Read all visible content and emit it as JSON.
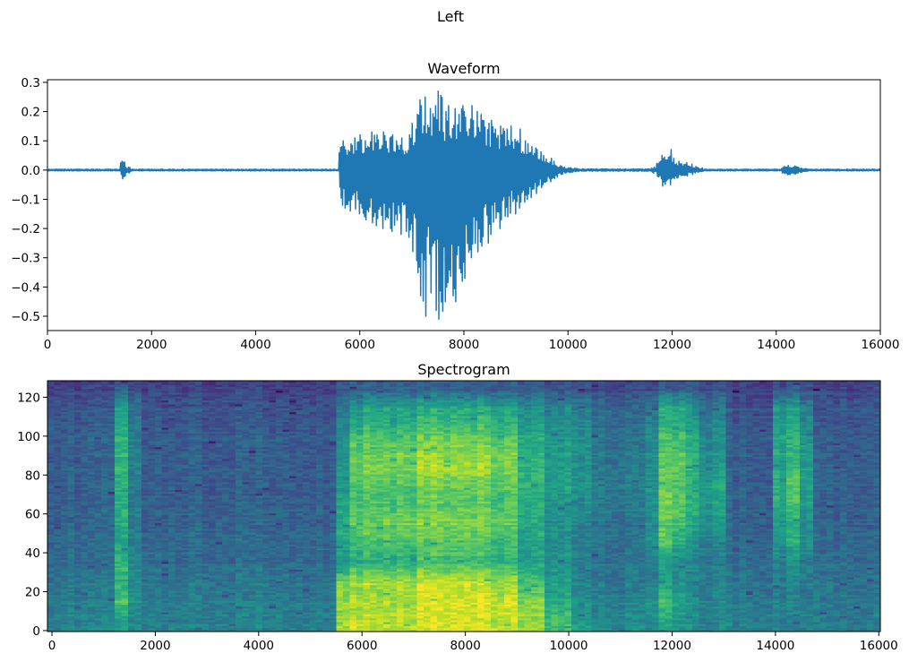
{
  "figure": {
    "suptitle": "Left"
  },
  "chart_data": [
    {
      "type": "line",
      "title": "Waveform",
      "xlabel": "",
      "ylabel": "",
      "xlim": [
        0,
        16000
      ],
      "ylim": [
        -0.549,
        0.309
      ],
      "grid": false,
      "color": "#1f77b4",
      "xticks": [
        0,
        2000,
        4000,
        6000,
        8000,
        10000,
        12000,
        14000,
        16000
      ],
      "xtick_labels": [
        "0",
        "2000",
        "4000",
        "6000",
        "8000",
        "10000",
        "12000",
        "14000",
        "16000"
      ],
      "yticks": [
        0.3,
        0.2,
        0.1,
        0.0,
        -0.1,
        -0.2,
        -0.3,
        -0.4,
        -0.5
      ],
      "ytick_labels": [
        "0.3",
        "0.2",
        "0.1",
        "0.0",
        "−0.1",
        "−0.2",
        "−0.3",
        "−0.4",
        "−0.5"
      ],
      "envelope_bin_samples": 100,
      "envelope_max": [
        0.003,
        0.003,
        0.003,
        0.003,
        0.003,
        0.003,
        0.003,
        0.003,
        0.003,
        0.003,
        0.003,
        0.003,
        0.003,
        0.003,
        0.03,
        0.01,
        0.003,
        0.003,
        0.003,
        0.003,
        0.003,
        0.003,
        0.003,
        0.003,
        0.003,
        0.003,
        0.003,
        0.003,
        0.003,
        0.003,
        0.003,
        0.003,
        0.003,
        0.003,
        0.003,
        0.003,
        0.003,
        0.003,
        0.003,
        0.003,
        0.003,
        0.003,
        0.003,
        0.003,
        0.003,
        0.003,
        0.003,
        0.003,
        0.003,
        0.003,
        0.003,
        0.003,
        0.003,
        0.003,
        0.003,
        0.003,
        0.1,
        0.08,
        0.09,
        0.11,
        0.12,
        0.1,
        0.13,
        0.12,
        0.13,
        0.11,
        0.12,
        0.1,
        0.11,
        0.12,
        0.16,
        0.24,
        0.25,
        0.21,
        0.22,
        0.27,
        0.2,
        0.22,
        0.21,
        0.22,
        0.2,
        0.22,
        0.2,
        0.19,
        0.16,
        0.17,
        0.14,
        0.15,
        0.14,
        0.15,
        0.14,
        0.1,
        0.09,
        0.08,
        0.07,
        0.05,
        0.04,
        0.03,
        0.015,
        0.01,
        0.008,
        0.006,
        0.004,
        0.004,
        0.004,
        0.004,
        0.004,
        0.004,
        0.004,
        0.004,
        0.004,
        0.004,
        0.004,
        0.004,
        0.004,
        0.004,
        0.01,
        0.03,
        0.05,
        0.07,
        0.04,
        0.03,
        0.025,
        0.02,
        0.012,
        0.008,
        0.003,
        0.003,
        0.003,
        0.003,
        0.003,
        0.003,
        0.003,
        0.003,
        0.003,
        0.003,
        0.003,
        0.003,
        0.003,
        0.003,
        0.003,
        0.012,
        0.016,
        0.014,
        0.01,
        0.005,
        0.003,
        0.003,
        0.003,
        0.003,
        0.003,
        0.003,
        0.003,
        0.003,
        0.003,
        0.003,
        0.003,
        0.003,
        0.003,
        0.003
      ],
      "envelope_min": [
        -0.003,
        -0.003,
        -0.003,
        -0.003,
        -0.003,
        -0.003,
        -0.003,
        -0.003,
        -0.003,
        -0.003,
        -0.003,
        -0.003,
        -0.003,
        -0.003,
        -0.03,
        -0.01,
        -0.003,
        -0.003,
        -0.003,
        -0.003,
        -0.003,
        -0.003,
        -0.003,
        -0.003,
        -0.003,
        -0.003,
        -0.003,
        -0.003,
        -0.003,
        -0.003,
        -0.003,
        -0.003,
        -0.003,
        -0.003,
        -0.003,
        -0.003,
        -0.003,
        -0.003,
        -0.003,
        -0.003,
        -0.003,
        -0.003,
        -0.003,
        -0.003,
        -0.003,
        -0.003,
        -0.003,
        -0.003,
        -0.003,
        -0.003,
        -0.003,
        -0.003,
        -0.003,
        -0.003,
        -0.003,
        -0.003,
        -0.12,
        -0.13,
        -0.14,
        -0.15,
        -0.16,
        -0.17,
        -0.18,
        -0.19,
        -0.2,
        -0.2,
        -0.21,
        -0.22,
        -0.21,
        -0.23,
        -0.31,
        -0.43,
        -0.5,
        -0.42,
        -0.48,
        -0.51,
        -0.45,
        -0.43,
        -0.45,
        -0.38,
        -0.37,
        -0.3,
        -0.28,
        -0.26,
        -0.25,
        -0.22,
        -0.2,
        -0.17,
        -0.16,
        -0.15,
        -0.13,
        -0.11,
        -0.1,
        -0.08,
        -0.06,
        -0.05,
        -0.04,
        -0.03,
        -0.015,
        -0.01,
        -0.008,
        -0.006,
        -0.004,
        -0.004,
        -0.004,
        -0.004,
        -0.004,
        -0.004,
        -0.004,
        -0.004,
        -0.004,
        -0.004,
        -0.004,
        -0.004,
        -0.004,
        -0.004,
        -0.01,
        -0.03,
        -0.055,
        -0.05,
        -0.03,
        -0.025,
        -0.02,
        -0.015,
        -0.01,
        -0.006,
        -0.003,
        -0.003,
        -0.003,
        -0.003,
        -0.003,
        -0.003,
        -0.003,
        -0.003,
        -0.003,
        -0.003,
        -0.003,
        -0.003,
        -0.003,
        -0.003,
        -0.003,
        -0.012,
        -0.016,
        -0.014,
        -0.01,
        -0.005,
        -0.003,
        -0.003,
        -0.003,
        -0.003,
        -0.003,
        -0.003,
        -0.003,
        -0.003,
        -0.003,
        -0.003,
        -0.003,
        -0.003,
        -0.003,
        -0.003
      ]
    },
    {
      "type": "heatmap",
      "title": "Spectrogram",
      "xlabel": "",
      "ylabel": "",
      "colormap": "viridis",
      "xlim": [
        -87,
        16030
      ],
      "ylim": [
        -0.5,
        128.5
      ],
      "time_frames": 124,
      "freq_bins": 129,
      "xticks": [
        0,
        2000,
        4000,
        6000,
        8000,
        10000,
        12000,
        14000,
        16000
      ],
      "xtick_labels": [
        "0",
        "2000",
        "4000",
        "6000",
        "8000",
        "10000",
        "12000",
        "14000",
        "16000"
      ],
      "yticks": [
        0,
        20,
        40,
        60,
        80,
        100,
        120
      ],
      "ytick_labels": [
        "0",
        "20",
        "40",
        "60",
        "80",
        "100",
        "120"
      ],
      "band_edges": [
        0,
        10,
        20,
        30,
        40,
        50,
        60,
        70,
        80,
        90,
        100,
        110,
        120,
        129
      ],
      "segments": [
        {
          "from": -87,
          "to": 1250,
          "level": [
            0.45,
            0.42,
            0.4,
            0.36,
            0.33,
            0.32,
            0.31,
            0.3,
            0.3,
            0.3,
            0.29,
            0.26,
            0.2
          ]
        },
        {
          "from": 1250,
          "to": 1500,
          "level": [
            0.55,
            0.72,
            0.62,
            0.65,
            0.55,
            0.6,
            0.62,
            0.6,
            0.66,
            0.64,
            0.6,
            0.55,
            0.3
          ]
        },
        {
          "from": 1500,
          "to": 1750,
          "level": [
            0.45,
            0.5,
            0.45,
            0.45,
            0.4,
            0.4,
            0.4,
            0.4,
            0.42,
            0.42,
            0.4,
            0.35,
            0.22
          ]
        },
        {
          "from": 1750,
          "to": 5500,
          "level": [
            0.45,
            0.42,
            0.4,
            0.36,
            0.33,
            0.32,
            0.31,
            0.3,
            0.3,
            0.3,
            0.29,
            0.26,
            0.2
          ]
        },
        {
          "from": 5500,
          "to": 5750,
          "level": [
            0.85,
            0.82,
            0.8,
            0.5,
            0.55,
            0.6,
            0.55,
            0.5,
            0.5,
            0.48,
            0.45,
            0.38,
            0.25
          ]
        },
        {
          "from": 5750,
          "to": 6000,
          "level": [
            0.9,
            0.85,
            0.85,
            0.6,
            0.65,
            0.75,
            0.7,
            0.68,
            0.75,
            0.72,
            0.6,
            0.5,
            0.28
          ]
        },
        {
          "from": 6000,
          "to": 7000,
          "level": [
            0.9,
            0.86,
            0.86,
            0.62,
            0.68,
            0.78,
            0.7,
            0.72,
            0.8,
            0.76,
            0.65,
            0.55,
            0.3
          ]
        },
        {
          "from": 7000,
          "to": 8500,
          "level": [
            0.95,
            0.95,
            0.92,
            0.7,
            0.72,
            0.82,
            0.75,
            0.78,
            0.88,
            0.82,
            0.7,
            0.6,
            0.32
          ]
        },
        {
          "from": 8500,
          "to": 9000,
          "level": [
            0.92,
            0.92,
            0.85,
            0.65,
            0.65,
            0.75,
            0.7,
            0.72,
            0.8,
            0.75,
            0.65,
            0.55,
            0.3
          ]
        },
        {
          "from": 9000,
          "to": 9500,
          "level": [
            0.85,
            0.8,
            0.7,
            0.55,
            0.55,
            0.6,
            0.6,
            0.62,
            0.65,
            0.62,
            0.55,
            0.48,
            0.28
          ]
        },
        {
          "from": 9500,
          "to": 10000,
          "level": [
            0.7,
            0.6,
            0.55,
            0.5,
            0.48,
            0.5,
            0.52,
            0.55,
            0.55,
            0.55,
            0.5,
            0.45,
            0.26
          ]
        },
        {
          "from": 10000,
          "to": 10500,
          "level": [
            0.55,
            0.5,
            0.45,
            0.42,
            0.42,
            0.45,
            0.48,
            0.5,
            0.5,
            0.5,
            0.48,
            0.42,
            0.25
          ]
        },
        {
          "from": 10500,
          "to": 11500,
          "level": [
            0.48,
            0.45,
            0.4,
            0.38,
            0.37,
            0.38,
            0.4,
            0.42,
            0.4,
            0.38,
            0.37,
            0.33,
            0.22
          ]
        },
        {
          "from": 11500,
          "to": 11750,
          "level": [
            0.5,
            0.55,
            0.45,
            0.45,
            0.5,
            0.5,
            0.52,
            0.52,
            0.5,
            0.5,
            0.48,
            0.4,
            0.24
          ]
        },
        {
          "from": 11750,
          "to": 12000,
          "level": [
            0.6,
            0.72,
            0.55,
            0.55,
            0.72,
            0.75,
            0.8,
            0.78,
            0.75,
            0.72,
            0.68,
            0.6,
            0.3
          ]
        },
        {
          "from": 12000,
          "to": 12250,
          "level": [
            0.55,
            0.6,
            0.5,
            0.5,
            0.62,
            0.7,
            0.75,
            0.72,
            0.78,
            0.72,
            0.68,
            0.6,
            0.3
          ]
        },
        {
          "from": 12250,
          "to": 12500,
          "level": [
            0.5,
            0.5,
            0.45,
            0.45,
            0.5,
            0.58,
            0.62,
            0.6,
            0.65,
            0.6,
            0.58,
            0.5,
            0.28
          ]
        },
        {
          "from": 12500,
          "to": 13000,
          "level": [
            0.45,
            0.45,
            0.42,
            0.4,
            0.42,
            0.48,
            0.55,
            0.55,
            0.5,
            0.48,
            0.45,
            0.4,
            0.25
          ]
        },
        {
          "from": 13000,
          "to": 14000,
          "level": [
            0.45,
            0.42,
            0.4,
            0.36,
            0.33,
            0.32,
            0.31,
            0.3,
            0.3,
            0.3,
            0.29,
            0.26,
            0.2
          ]
        },
        {
          "from": 14000,
          "to": 14250,
          "level": [
            0.45,
            0.42,
            0.42,
            0.42,
            0.5,
            0.55,
            0.6,
            0.6,
            0.58,
            0.58,
            0.58,
            0.5,
            0.25
          ]
        },
        {
          "from": 14250,
          "to": 14500,
          "level": [
            0.45,
            0.45,
            0.45,
            0.48,
            0.6,
            0.62,
            0.7,
            0.72,
            0.68,
            0.65,
            0.62,
            0.55,
            0.28
          ]
        },
        {
          "from": 14500,
          "to": 14750,
          "level": [
            0.45,
            0.42,
            0.42,
            0.42,
            0.5,
            0.5,
            0.55,
            0.58,
            0.55,
            0.55,
            0.5,
            0.45,
            0.25
          ]
        },
        {
          "from": 14750,
          "to": 16030,
          "level": [
            0.42,
            0.4,
            0.38,
            0.35,
            0.32,
            0.31,
            0.3,
            0.3,
            0.29,
            0.29,
            0.28,
            0.26,
            0.2
          ]
        }
      ]
    }
  ]
}
